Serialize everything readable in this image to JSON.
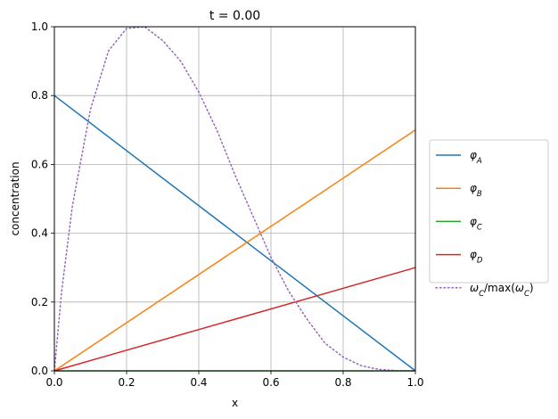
{
  "chart_data": {
    "type": "line",
    "title": "t = 0.00",
    "xlabel": "x",
    "ylabel": "concentration",
    "xlim": [
      0.0,
      1.0
    ],
    "ylim": [
      0.0,
      1.0
    ],
    "xticks": [
      "0.0",
      "0.2",
      "0.4",
      "0.6",
      "0.8",
      "1.0"
    ],
    "yticks": [
      "0.0",
      "0.2",
      "0.4",
      "0.6",
      "0.8",
      "1.0"
    ],
    "grid": true,
    "legend_position": "outside-right",
    "series": [
      {
        "name": "φ_A",
        "color": "#1f77b4",
        "style": "solid",
        "x": [
          0.0,
          1.0
        ],
        "y": [
          0.8,
          0.0
        ]
      },
      {
        "name": "φ_B",
        "color": "#ff7f0e",
        "style": "solid",
        "x": [
          0.0,
          1.0
        ],
        "y": [
          0.0,
          0.7
        ]
      },
      {
        "name": "φ_C",
        "color": "#2ca02c",
        "style": "solid",
        "x": [
          0.0,
          1.0
        ],
        "y": [
          0.0,
          0.0
        ]
      },
      {
        "name": "φ_D",
        "color": "#d62728",
        "style": "solid",
        "x": [
          0.0,
          1.0
        ],
        "y": [
          0.0,
          0.3
        ]
      },
      {
        "name": "ω_C/max(ω_C)",
        "color": "#9467bd",
        "style": "dotted",
        "x": [
          0.0,
          0.02,
          0.05,
          0.1,
          0.15,
          0.2,
          0.25,
          0.3,
          0.35,
          0.4,
          0.45,
          0.5,
          0.55,
          0.6,
          0.65,
          0.7,
          0.75,
          0.8,
          0.85,
          0.9,
          0.95,
          1.0
        ],
        "y": [
          0.0,
          0.23,
          0.48,
          0.76,
          0.93,
          0.995,
          1.0,
          0.96,
          0.9,
          0.81,
          0.7,
          0.57,
          0.45,
          0.33,
          0.23,
          0.15,
          0.08,
          0.04,
          0.015,
          0.004,
          0.0005,
          0.0
        ]
      }
    ]
  }
}
